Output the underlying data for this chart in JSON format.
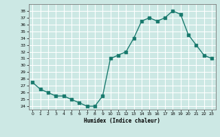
{
  "x": [
    0,
    1,
    2,
    3,
    4,
    5,
    6,
    7,
    8,
    9,
    10,
    11,
    12,
    13,
    14,
    15,
    16,
    17,
    18,
    19,
    20,
    21,
    22,
    23
  ],
  "y": [
    27.5,
    26.5,
    26.0,
    25.5,
    25.5,
    25.0,
    24.5,
    24.0,
    24.0,
    25.5,
    31.0,
    31.5,
    32.0,
    34.0,
    36.5,
    37.0,
    36.5,
    37.0,
    38.0,
    37.5,
    34.5,
    33.0,
    31.5,
    31.0
  ],
  "line_color": "#1a7a6e",
  "marker_color": "#1a7a6e",
  "bg_color": "#cce8e4",
  "grid_color": "#ffffff",
  "xlabel": "Humidex (Indice chaleur)",
  "ylim_min": 23.5,
  "ylim_max": 39.0,
  "xlim_min": -0.5,
  "xlim_max": 23.5,
  "yticks": [
    24,
    25,
    26,
    27,
    28,
    29,
    30,
    31,
    32,
    33,
    34,
    35,
    36,
    37,
    38
  ],
  "xticks": [
    0,
    1,
    2,
    3,
    4,
    5,
    6,
    7,
    8,
    9,
    10,
    11,
    12,
    13,
    14,
    15,
    16,
    17,
    18,
    19,
    20,
    21,
    22,
    23
  ]
}
